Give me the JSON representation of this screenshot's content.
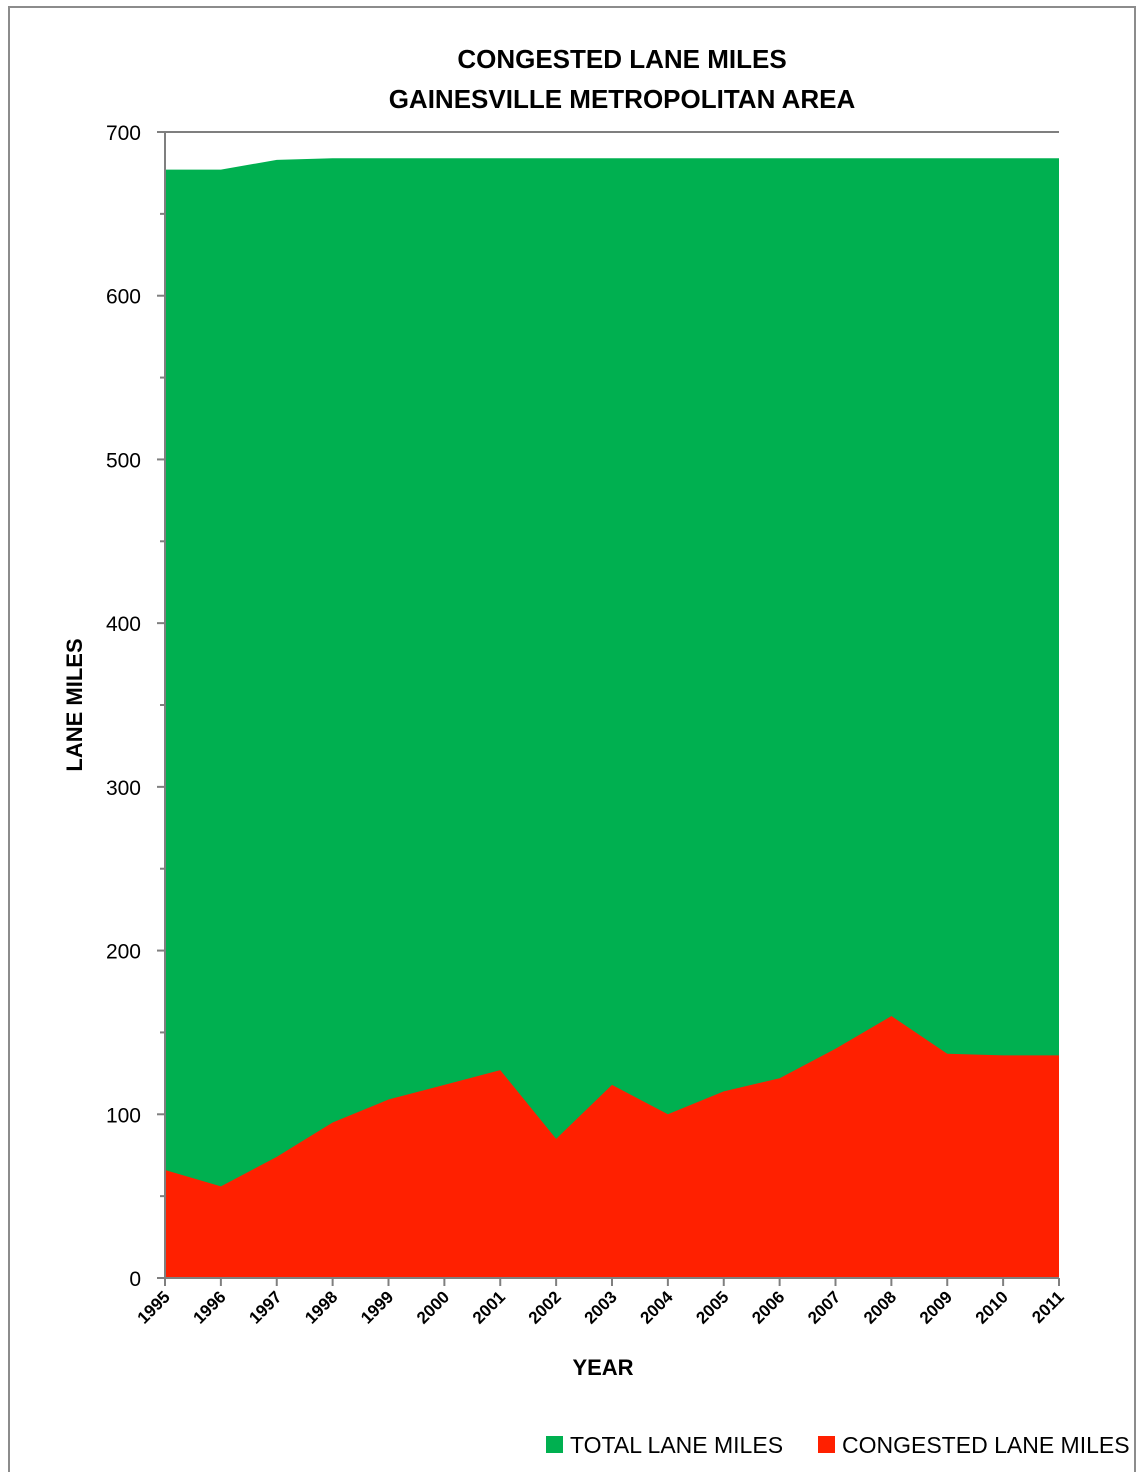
{
  "chart_data": {
    "type": "area",
    "title": "CONGESTED LANE MILES",
    "subtitle": "GAINESVILLE METROPOLITAN AREA",
    "xlabel": "YEAR",
    "ylabel": "LANE MILES",
    "ylim": [
      0,
      700
    ],
    "yticks": [
      0,
      100,
      200,
      300,
      400,
      500,
      600,
      700
    ],
    "categories": [
      "1995",
      "1996",
      "1997",
      "1998",
      "1999",
      "2000",
      "2001",
      "2002",
      "2003",
      "2004",
      "2005",
      "2006",
      "2007",
      "2008",
      "2009",
      "2010",
      "2011"
    ],
    "series": [
      {
        "name": "TOTAL LANE MILES",
        "color": "#00b050",
        "values": [
          677,
          677,
          683,
          684,
          684,
          684,
          684,
          684,
          684,
          684,
          684,
          684,
          684,
          684,
          684,
          684,
          684
        ]
      },
      {
        "name": "CONGESTED LANE MILES",
        "color": "#ff2000",
        "values": [
          66,
          56,
          74,
          95,
          109,
          118,
          127,
          85,
          118,
          100,
          114,
          122,
          140,
          160,
          137,
          136,
          136
        ]
      }
    ],
    "legend": "bottom-right",
    "grid": false
  }
}
